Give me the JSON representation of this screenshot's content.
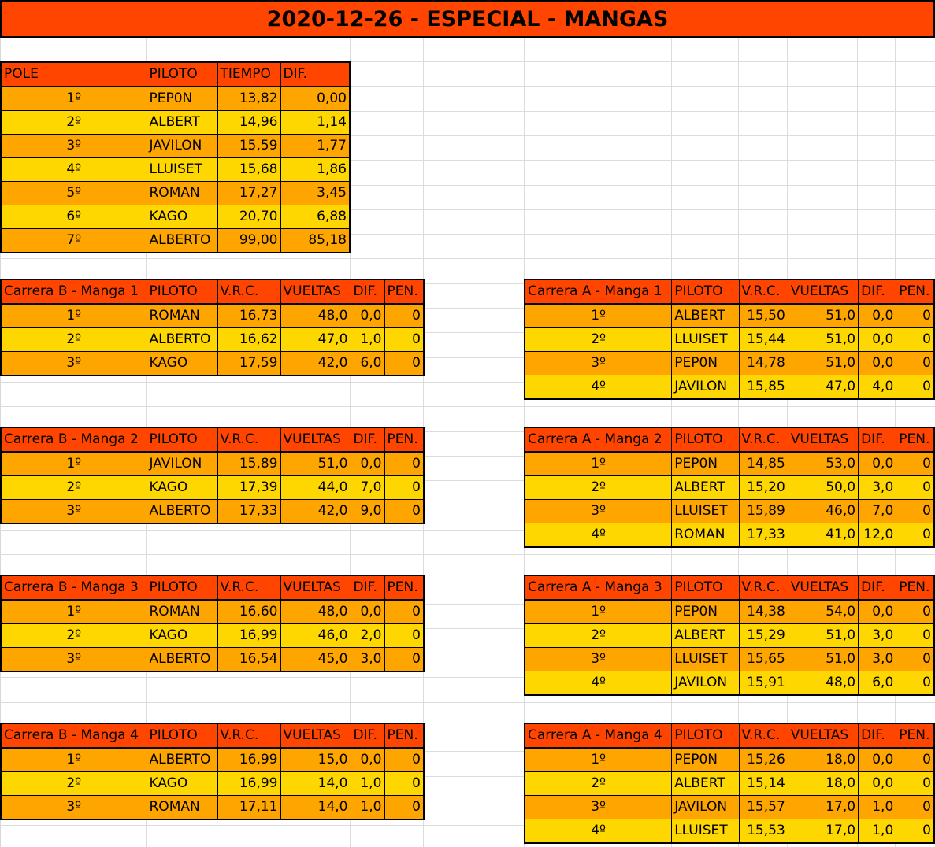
{
  "title": "2020-12-26 - ESPECIAL - MANGAS",
  "pole": {
    "headers": [
      "POLE",
      "PILOTO",
      "TIEMPO",
      "DIF."
    ],
    "rows": [
      [
        "1º",
        "PEP0N",
        "13,82",
        "0,00"
      ],
      [
        "2º",
        "ALBERT",
        "14,96",
        "1,14"
      ],
      [
        "3º",
        "JAVILON",
        "15,59",
        "1,77"
      ],
      [
        "4º",
        "LLUISET",
        "15,68",
        "1,86"
      ],
      [
        "5º",
        "ROMAN",
        "17,27",
        "3,45"
      ],
      [
        "6º",
        "KAGO",
        "20,70",
        "6,88"
      ],
      [
        "7º",
        "ALBERTO",
        "99,00",
        "85,18"
      ]
    ]
  },
  "heats": [
    {
      "id": "b1",
      "headers": [
        "Carrera B - Manga 1",
        "PILOTO",
        "V.R.C.",
        "VUELTAS",
        "DIF.",
        "PEN."
      ],
      "rows": [
        [
          "1º",
          "ROMAN",
          "16,73",
          "48,0",
          "0,0",
          "0"
        ],
        [
          "2º",
          "ALBERTO",
          "16,62",
          "47,0",
          "1,0",
          "0"
        ],
        [
          "3º",
          "KAGO",
          "17,59",
          "42,0",
          "6,0",
          "0"
        ]
      ]
    },
    {
      "id": "b2",
      "headers": [
        "Carrera B - Manga 2",
        "PILOTO",
        "V.R.C.",
        "VUELTAS",
        "DIF.",
        "PEN."
      ],
      "rows": [
        [
          "1º",
          "JAVILON",
          "15,89",
          "51,0",
          "0,0",
          "0"
        ],
        [
          "2º",
          "KAGO",
          "17,39",
          "44,0",
          "7,0",
          "0"
        ],
        [
          "3º",
          "ALBERTO",
          "17,33",
          "42,0",
          "9,0",
          "0"
        ]
      ]
    },
    {
      "id": "b3",
      "headers": [
        "Carrera B - Manga 3",
        "PILOTO",
        "V.R.C.",
        "VUELTAS",
        "DIF.",
        "PEN."
      ],
      "rows": [
        [
          "1º",
          "ROMAN",
          "16,60",
          "48,0",
          "0,0",
          "0"
        ],
        [
          "2º",
          "KAGO",
          "16,99",
          "46,0",
          "2,0",
          "0"
        ],
        [
          "3º",
          "ALBERTO",
          "16,54",
          "45,0",
          "3,0",
          "0"
        ]
      ]
    },
    {
      "id": "b4",
      "headers": [
        "Carrera B - Manga 4",
        "PILOTO",
        "V.R.C.",
        "VUELTAS",
        "DIF.",
        "PEN."
      ],
      "rows": [
        [
          "1º",
          "ALBERTO",
          "16,99",
          "15,0",
          "0,0",
          "0"
        ],
        [
          "2º",
          "KAGO",
          "16,99",
          "14,0",
          "1,0",
          "0"
        ],
        [
          "3º",
          "ROMAN",
          "17,11",
          "14,0",
          "1,0",
          "0"
        ]
      ]
    },
    {
      "id": "a1",
      "headers": [
        "Carrera A - Manga 1",
        "PILOTO",
        "V.R.C.",
        "VUELTAS",
        "DIF.",
        "PEN."
      ],
      "rows": [
        [
          "1º",
          "ALBERT",
          "15,50",
          "51,0",
          "0,0",
          "0"
        ],
        [
          "2º",
          "LLUISET",
          "15,44",
          "51,0",
          "0,0",
          "0"
        ],
        [
          "3º",
          "PEP0N",
          "14,78",
          "51,0",
          "0,0",
          "0"
        ],
        [
          "4º",
          "JAVILON",
          "15,85",
          "47,0",
          "4,0",
          "0"
        ]
      ]
    },
    {
      "id": "a2",
      "headers": [
        "Carrera A - Manga 2",
        "PILOTO",
        "V.R.C.",
        "VUELTAS",
        "DIF.",
        "PEN."
      ],
      "rows": [
        [
          "1º",
          "PEP0N",
          "14,85",
          "53,0",
          "0,0",
          "0"
        ],
        [
          "2º",
          "ALBERT",
          "15,20",
          "50,0",
          "3,0",
          "0"
        ],
        [
          "3º",
          "LLUISET",
          "15,89",
          "46,0",
          "7,0",
          "0"
        ],
        [
          "4º",
          "ROMAN",
          "17,33",
          "41,0",
          "12,0",
          "0"
        ]
      ]
    },
    {
      "id": "a3",
      "headers": [
        "Carrera A - Manga 3",
        "PILOTO",
        "V.R.C.",
        "VUELTAS",
        "DIF.",
        "PEN."
      ],
      "rows": [
        [
          "1º",
          "PEP0N",
          "14,38",
          "54,0",
          "0,0",
          "0"
        ],
        [
          "2º",
          "ALBERT",
          "15,29",
          "51,0",
          "3,0",
          "0"
        ],
        [
          "3º",
          "LLUISET",
          "15,65",
          "51,0",
          "3,0",
          "0"
        ],
        [
          "4º",
          "JAVILON",
          "15,91",
          "48,0",
          "6,0",
          "0"
        ]
      ]
    },
    {
      "id": "a4",
      "headers": [
        "Carrera A - Manga 4",
        "PILOTO",
        "V.R.C.",
        "VUELTAS",
        "DIF.",
        "PEN."
      ],
      "rows": [
        [
          "1º",
          "PEP0N",
          "15,26",
          "18,0",
          "0,0",
          "0"
        ],
        [
          "2º",
          "ALBERT",
          "15,14",
          "18,0",
          "0,0",
          "0"
        ],
        [
          "3º",
          "JAVILON",
          "15,57",
          "17,0",
          "1,0",
          "0"
        ],
        [
          "4º",
          "LLUISET",
          "15,53",
          "17,0",
          "1,0",
          "0"
        ]
      ]
    }
  ]
}
